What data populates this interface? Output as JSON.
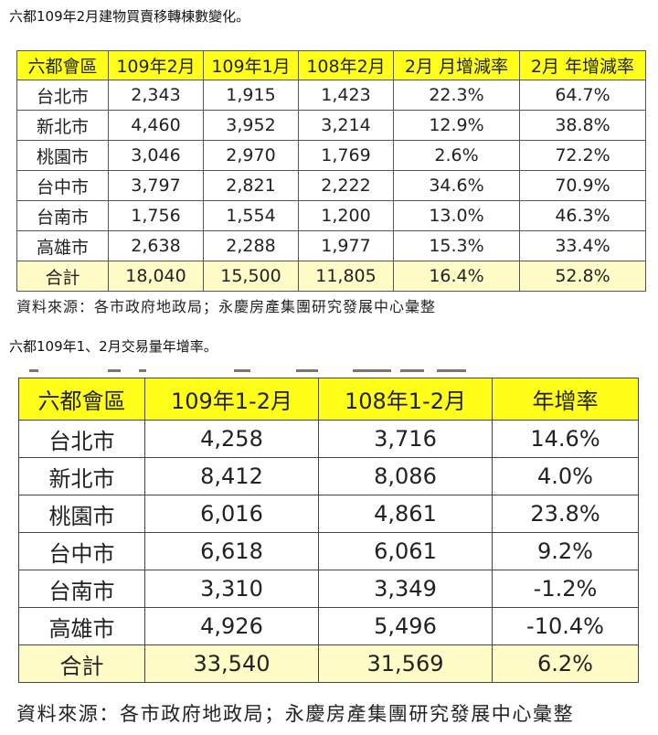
{
  "section1": {
    "title": "六都109年2月建物買賣移轉棟數變化。",
    "headers": [
      "六都會區",
      "109年2月",
      "109年1月",
      "108年2月",
      "2月 月增減率",
      "2月 年增減率"
    ],
    "rows": [
      [
        "台北市",
        "2,343",
        "1,915",
        "1,423",
        "22.3%",
        "64.7%"
      ],
      [
        "新北市",
        "4,460",
        "3,952",
        "3,214",
        "12.9%",
        "38.8%"
      ],
      [
        "桃園市",
        "3,046",
        "2,970",
        "1,769",
        "2.6%",
        "72.2%"
      ],
      [
        "台中市",
        "3,797",
        "2,821",
        "2,222",
        "34.6%",
        "70.9%"
      ],
      [
        "台南市",
        "1,756",
        "1,554",
        "1,200",
        "13.0%",
        "46.3%"
      ],
      [
        "高雄市",
        "2,638",
        "2,288",
        "1,977",
        "15.3%",
        "33.4%"
      ],
      [
        "合計",
        "18,040",
        "15,500",
        "11,805",
        "16.4%",
        "52.8%"
      ]
    ],
    "source": "資料來源：各市政府地政局；永慶房產集團研究發展中心彙整"
  },
  "section2": {
    "title": "六都109年1、2月交易量年增率。",
    "headers": [
      "六都會區",
      "109年1-2月",
      "108年1-2月",
      "年增率"
    ],
    "rows": [
      [
        "台北市",
        "4,258",
        "3,716",
        "14.6%"
      ],
      [
        "新北市",
        "8,412",
        "8,086",
        "4.0%"
      ],
      [
        "桃園市",
        "6,016",
        "4,861",
        "23.8%"
      ],
      [
        "台中市",
        "6,618",
        "6,061",
        "9.2%"
      ],
      [
        "台南市",
        "3,310",
        "3,349",
        "-1.2%"
      ],
      [
        "高雄市",
        "4,926",
        "5,496",
        "-10.4%"
      ],
      [
        "合計",
        "33,540",
        "31,569",
        "6.2%"
      ]
    ],
    "source": "資料來源：各市政府地政局；永慶房產集團研究發展中心彙整"
  },
  "colors": {
    "header_bg": "#ffff1a",
    "total_bg": "#fffcc8",
    "border": "#555555"
  }
}
